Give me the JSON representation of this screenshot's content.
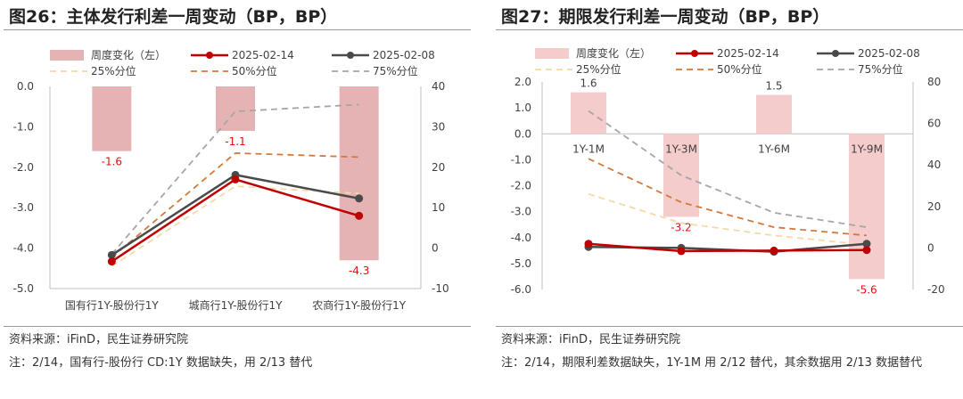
{
  "panels": [
    {
      "title": "图26：主体发行利差一周变动（BP，BP）",
      "source": "资料来源：iFinD，民生证券研究院",
      "note": "注：2/14，国有行-股份行 CD:1Y 数据缺失，用 2/13 替代"
    },
    {
      "title": "图27：期限发行利差一周变动（BP，BP）",
      "source": "资料来源：iFinD，民生证券研究院",
      "note": "注：2/14，期限利差数据缺失，1Y-1M 用 2/12 替代，其余数据用 2/13 数据替代"
    }
  ],
  "chart_data": [
    {
      "type": "bar",
      "title": "图26：主体发行利差一周变动（BP，BP）",
      "categories": [
        "国有行1Y-股份行1Y",
        "城商行1Y-股份行1Y",
        "农商行1Y-股份行1Y"
      ],
      "left_axis": {
        "min": -5,
        "max": 0,
        "step": 1,
        "ticks": [
          "0.0",
          "-1.0",
          "-2.0",
          "-3.0",
          "-4.0",
          "-5.0"
        ]
      },
      "right_axis": {
        "min": -10,
        "max": 40,
        "step": 10,
        "ticks": [
          "40",
          "30",
          "20",
          "10",
          "0",
          "-10"
        ]
      },
      "bars": {
        "name": "周度变化（左）",
        "values": [
          -1.6,
          -1.1,
          -4.3
        ],
        "labels": [
          "-1.6",
          "-1.1",
          "-4.3"
        ]
      },
      "lines": [
        {
          "name": "2025-02-14",
          "values": [
            -3.3,
            17,
            8
          ]
        },
        {
          "name": "2025-02-08",
          "values": [
            -1.7,
            18.1,
            12.3
          ]
        },
        {
          "name": "25%分位",
          "values": [
            -4.5,
            15.3,
            13.5
          ]
        },
        {
          "name": "50%分位",
          "values": [
            -2.3,
            23.5,
            22.5
          ]
        },
        {
          "name": "75%分位",
          "values": [
            -1.5,
            33.8,
            35.5
          ]
        }
      ],
      "legend": [
        {
          "label": "周度变化（左）",
          "kind": "bar"
        },
        {
          "label": "2025-02-14",
          "kind": "line"
        },
        {
          "label": "2025-02-08",
          "kind": "line"
        },
        {
          "label": "25%分位",
          "kind": "dash"
        },
        {
          "label": "50%分位",
          "kind": "dash"
        },
        {
          "label": "75%分位",
          "kind": "dash"
        }
      ],
      "legend_position": "top"
    },
    {
      "type": "bar",
      "title": "图27：期限发行利差一周变动（BP，BP）",
      "categories": [
        "1Y-1M",
        "1Y-3M",
        "1Y-6M",
        "1Y-9M"
      ],
      "left_axis": {
        "min": -6,
        "max": 2,
        "step": 1,
        "ticks": [
          "2.0",
          "1.0",
          "0.0",
          "-1.0",
          "-2.0",
          "-3.0",
          "-4.0",
          "-5.0",
          "-6.0"
        ]
      },
      "right_axis": {
        "min": -20,
        "max": 80,
        "step": 20,
        "ticks": [
          "80",
          "60",
          "40",
          "20",
          "0",
          "-20"
        ]
      },
      "bars": {
        "name": "周度变化（左）",
        "values": [
          1.6,
          -3.2,
          1.5,
          -5.6
        ],
        "labels": [
          "1.6",
          "-3.2",
          "1.5",
          "-5.6"
        ]
      },
      "lines": [
        {
          "name": "2025-02-14",
          "values": [
            2,
            -1.5,
            -1.3,
            -1
          ]
        },
        {
          "name": "2025-02-08",
          "values": [
            0.5,
            0,
            -1.8,
            2
          ]
        },
        {
          "name": "25%分位",
          "values": [
            26,
            12,
            6,
            1.5
          ]
        },
        {
          "name": "50%分位",
          "values": [
            43,
            22,
            10,
            6
          ]
        },
        {
          "name": "75%分位",
          "values": [
            66,
            35,
            17,
            10
          ]
        }
      ],
      "legend": [
        {
          "label": "周度变化（左）",
          "kind": "bar"
        },
        {
          "label": "2025-02-14",
          "kind": "line"
        },
        {
          "label": "2025-02-08",
          "kind": "line"
        },
        {
          "label": "25%分位",
          "kind": "dash"
        },
        {
          "label": "50%分位",
          "kind": "dash"
        },
        {
          "label": "75%分位",
          "kind": "dash"
        }
      ],
      "legend_position": "top"
    }
  ],
  "colors": {
    "bar_left": "#e5b3b3",
    "bar_right": "#f5cccc",
    "line_0214": "#c00000",
    "line_0208": "#4a4a4a",
    "p25": "#f5d9a8",
    "p50": "#d27a3c",
    "p75": "#a6a6a6",
    "bar_label": "#e01010"
  }
}
